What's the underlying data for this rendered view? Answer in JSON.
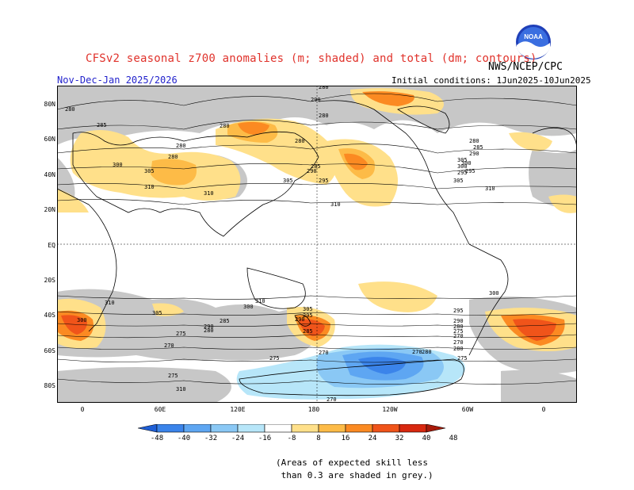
{
  "header": {
    "title": "CFSv2 seasonal z700 anomalies (m; shaded) and total (dm; contours)",
    "season": "Nov-Dec-Jan 2025/2026",
    "initial_conditions": "Initial conditions: 1Jun2025-10Jun2025",
    "agency": "NWS/NCEP/CPC",
    "logo_text": "NOAA"
  },
  "map": {
    "lat_labels": [
      "80N",
      "60N",
      "40N",
      "20N",
      "EQ",
      "20S",
      "40S",
      "60S",
      "80S"
    ],
    "lon_labels": [
      "0",
      "60E",
      "120E",
      "180",
      "120W",
      "60W",
      "0"
    ],
    "contour_labels": [
      "280",
      "285",
      "280",
      "280",
      "280",
      "290",
      "280",
      "280",
      "300",
      "305",
      "310",
      "310",
      "305",
      "295",
      "290",
      "285",
      "300",
      "305",
      "295",
      "310",
      "305",
      "300",
      "295",
      "290",
      "285",
      "280",
      "280",
      "310",
      "310",
      "310",
      "300",
      "305",
      "285",
      "290",
      "280",
      "275",
      "270",
      "300",
      "305",
      "295",
      "290",
      "280",
      "275",
      "270",
      "270",
      "270",
      "275",
      "270",
      "275",
      "310",
      "300",
      "295",
      "290",
      "285",
      "280",
      "275",
      "280",
      "270"
    ]
  },
  "colorbar": {
    "labels": [
      "-48",
      "-40",
      "-32",
      "-24",
      "-16",
      "-8",
      "8",
      "16",
      "24",
      "32",
      "40",
      "48"
    ],
    "colors": [
      "#1f5fd6",
      "#3b84ea",
      "#5ea6f2",
      "#8ac8f5",
      "#b7e6f9",
      "#ffffff",
      "#ffe08a",
      "#fdbb47",
      "#fb8a22",
      "#f0541a",
      "#d8280f",
      "#a81a0a"
    ]
  },
  "footnote": "(Areas of expected skill less\n than 0.3 are shaded in grey.)"
}
